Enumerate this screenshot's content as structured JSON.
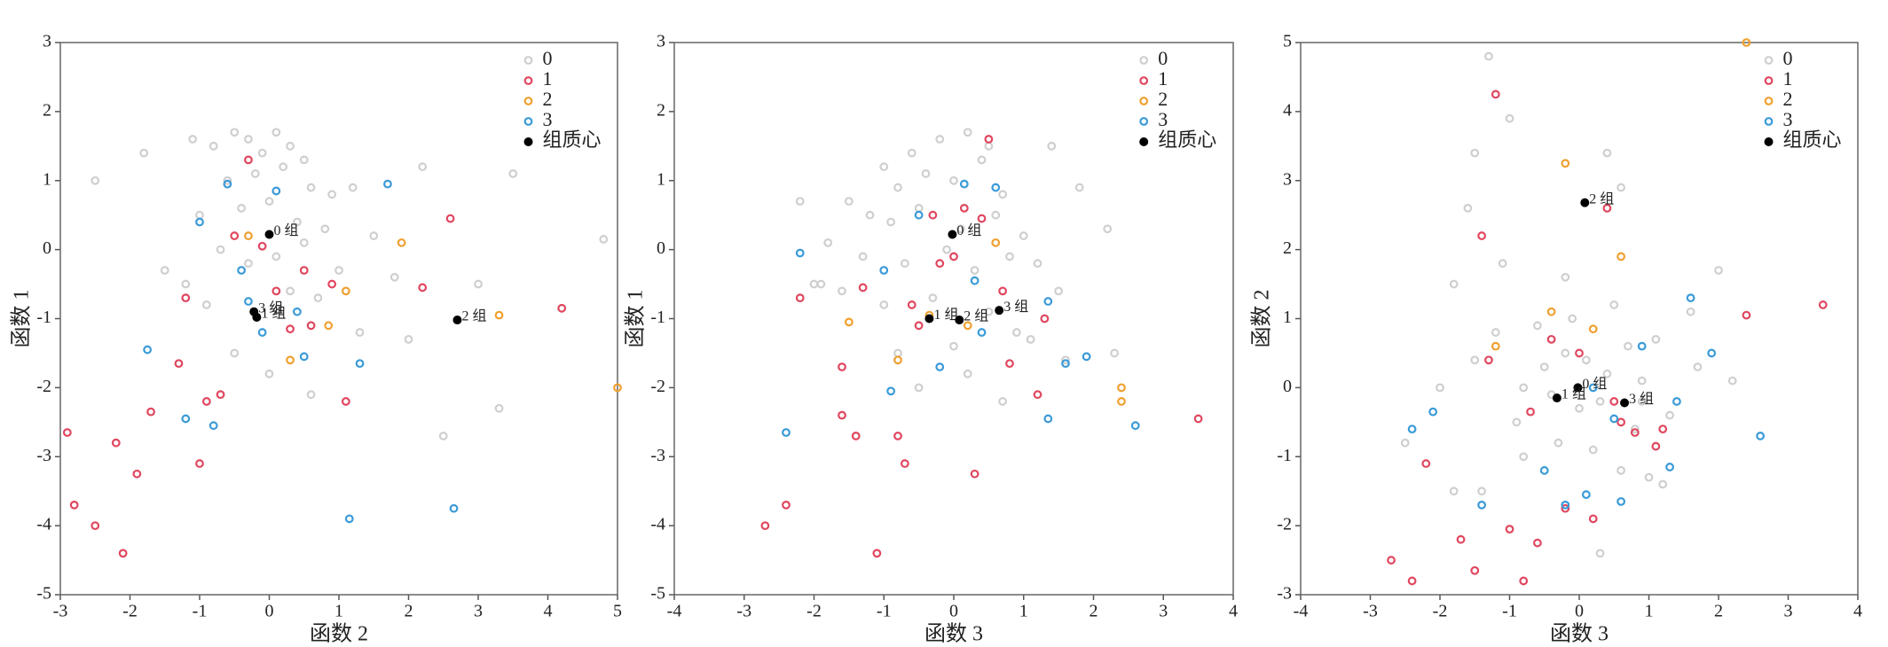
{
  "chart_data": [
    {
      "type": "scatter",
      "xlabel": "函数 2",
      "ylabel": "函数 1",
      "xlim": [
        -3,
        5
      ],
      "ylim": [
        -5,
        3
      ],
      "xticks": [
        -3,
        -2,
        -1,
        0,
        1,
        2,
        3,
        4,
        5
      ],
      "yticks": [
        -5,
        -4,
        -3,
        -2,
        -1,
        0,
        1,
        2,
        3
      ],
      "legend": "upper right",
      "series": [
        {
          "name": "0",
          "color": "#cfcfcf",
          "x": [
            -0.8,
            -0.5,
            -0.3,
            -0.1,
            0.1,
            0.3,
            0.5,
            -0.6,
            -0.2,
            0.2,
            0.6,
            0.9,
            -1.0,
            -0.4,
            0.0,
            0.4,
            0.8,
            1.2,
            -0.7,
            -0.3,
            0.1,
            0.5,
            1.0,
            1.5,
            -1.2,
            -0.9,
            0.3,
            0.7,
            1.3,
            2.0,
            -1.5,
            -2.5,
            -1.8,
            2.2,
            3.0,
            3.5,
            4.8,
            0.0,
            -0.5,
            0.6,
            1.8,
            2.5,
            3.3,
            -1.1
          ],
          "y": [
            1.5,
            1.7,
            1.6,
            1.4,
            1.7,
            1.5,
            1.3,
            1.0,
            1.1,
            1.2,
            0.9,
            0.8,
            0.5,
            0.6,
            0.7,
            0.4,
            0.3,
            0.9,
            0.0,
            -0.2,
            -0.1,
            0.1,
            -0.3,
            0.2,
            -0.5,
            -0.8,
            -0.6,
            -0.7,
            -1.2,
            -1.3,
            -0.3,
            1.0,
            1.4,
            1.2,
            -0.5,
            1.1,
            0.15,
            -1.8,
            -1.5,
            -2.1,
            -0.4,
            -2.7,
            -2.3,
            1.6
          ]
        },
        {
          "name": "1",
          "color": "#e0475f",
          "x": [
            -2.9,
            -2.8,
            -2.5,
            -2.1,
            -1.9,
            -1.7,
            -1.3,
            -1.0,
            -0.9,
            -0.7,
            -0.5,
            -0.3,
            -0.1,
            0.1,
            0.3,
            0.6,
            0.9,
            1.1,
            2.2,
            2.6,
            4.2,
            -2.2,
            -1.2,
            0.5
          ],
          "y": [
            -2.65,
            -3.7,
            -4.0,
            -4.4,
            -3.25,
            -2.35,
            -1.65,
            -3.1,
            -2.2,
            -2.1,
            0.2,
            1.3,
            0.05,
            -0.6,
            -1.15,
            -1.1,
            -0.5,
            -2.2,
            -0.55,
            0.45,
            -0.85,
            -2.8,
            -0.7,
            -0.3
          ]
        },
        {
          "name": "2",
          "color": "#f0a030",
          "x": [
            -0.3,
            0.3,
            0.85,
            1.1,
            1.9,
            3.3,
            5.0
          ],
          "y": [
            0.2,
            -1.6,
            -1.1,
            -0.6,
            0.1,
            -0.95,
            -2.0
          ]
        },
        {
          "name": "3",
          "color": "#3a9ad8",
          "x": [
            -1.75,
            -1.2,
            -1.0,
            -0.8,
            -0.6,
            -0.4,
            -0.1,
            0.1,
            0.5,
            1.15,
            1.3,
            1.7,
            2.65,
            -0.3,
            0.4
          ],
          "y": [
            -1.45,
            -2.45,
            0.4,
            -2.55,
            0.95,
            -0.3,
            -1.2,
            0.85,
            -1.55,
            -3.9,
            -1.65,
            0.95,
            -3.75,
            -0.75,
            -0.9
          ]
        },
        {
          "name": "组质心",
          "color": "#000000",
          "filled": true,
          "x": [
            0.0,
            -0.18,
            2.7,
            -0.22
          ],
          "y": [
            0.22,
            -0.98,
            -1.02,
            -0.9
          ],
          "point_labels": [
            "0 组",
            "1 组",
            "2 组",
            "3 组"
          ]
        }
      ]
    },
    {
      "type": "scatter",
      "xlabel": "函数 3",
      "ylabel": "函数 1",
      "xlim": [
        -4,
        4
      ],
      "ylim": [
        -5,
        3
      ],
      "xticks": [
        -4,
        -3,
        -2,
        -1,
        0,
        1,
        2,
        3,
        4
      ],
      "yticks": [
        -5,
        -4,
        -3,
        -2,
        -1,
        0,
        1,
        2,
        3
      ],
      "legend": "upper right",
      "series": [
        {
          "name": "0",
          "color": "#cfcfcf",
          "x": [
            -1.0,
            -0.6,
            -0.2,
            0.2,
            0.5,
            -0.8,
            -0.4,
            0.0,
            0.4,
            0.7,
            -1.5,
            -1.2,
            -0.9,
            -0.5,
            0.1,
            0.6,
            1.0,
            -1.8,
            -1.3,
            -0.7,
            -0.1,
            0.3,
            0.8,
            1.2,
            -2.0,
            -1.6,
            -1.0,
            -0.3,
            0.5,
            0.9,
            1.5,
            -2.2,
            -0.8,
            0.2,
            1.1,
            1.8,
            2.2,
            -0.5,
            0.7,
            1.4,
            -1.9,
            0.0,
            1.6,
            2.3
          ],
          "y": [
            1.2,
            1.4,
            1.6,
            1.7,
            1.5,
            0.9,
            1.1,
            1.0,
            1.3,
            0.8,
            0.7,
            0.5,
            0.4,
            0.6,
            0.3,
            0.5,
            0.2,
            0.1,
            -0.1,
            -0.2,
            0.0,
            -0.3,
            -0.1,
            -0.2,
            -0.5,
            -0.6,
            -0.8,
            -0.7,
            -0.9,
            -1.2,
            -0.6,
            0.7,
            -1.5,
            -1.8,
            -1.3,
            0.9,
            0.3,
            -2.0,
            -2.2,
            1.5,
            -0.5,
            -1.4,
            -1.6,
            -1.5
          ]
        },
        {
          "name": "1",
          "color": "#e0475f",
          "x": [
            -2.7,
            -2.4,
            -2.2,
            -1.6,
            -1.4,
            -1.1,
            -0.8,
            -0.7,
            -0.5,
            -0.3,
            0.0,
            0.3,
            0.5,
            0.8,
            1.2,
            1.3,
            0.15,
            3.5,
            -0.6,
            -1.3,
            0.4,
            -1.6,
            0.7,
            -0.2
          ],
          "y": [
            -4.0,
            -3.7,
            -0.7,
            -1.7,
            -2.7,
            -4.4,
            -2.7,
            -3.1,
            -1.1,
            0.5,
            -0.1,
            -3.25,
            1.6,
            -1.65,
            -2.1,
            -1.0,
            0.6,
            -2.45,
            -0.8,
            -0.55,
            0.45,
            -2.4,
            -0.6,
            -0.2
          ]
        },
        {
          "name": "2",
          "color": "#f0a030",
          "x": [
            -1.5,
            -0.8,
            -0.35,
            0.2,
            0.6,
            2.4,
            2.4
          ],
          "y": [
            -1.05,
            -1.6,
            -0.95,
            -1.1,
            0.1,
            -2.0,
            -2.2
          ]
        },
        {
          "name": "3",
          "color": "#3a9ad8",
          "x": [
            -2.4,
            -2.2,
            -1.0,
            -0.9,
            -0.5,
            -0.2,
            0.15,
            0.4,
            0.6,
            1.35,
            1.6,
            1.9,
            2.6,
            0.3,
            1.35
          ],
          "y": [
            -2.65,
            -0.05,
            -0.3,
            -2.05,
            0.5,
            -1.7,
            0.95,
            -1.2,
            0.9,
            -0.75,
            -1.65,
            -1.55,
            -2.55,
            -0.45,
            -2.45
          ]
        },
        {
          "name": "组质心",
          "color": "#000000",
          "filled": true,
          "x": [
            -0.02,
            -0.35,
            0.08,
            0.65
          ],
          "y": [
            0.22,
            -1.0,
            -1.02,
            -0.88
          ],
          "point_labels": [
            "0 组",
            "1 组",
            "2 组",
            "3 组"
          ]
        }
      ]
    },
    {
      "type": "scatter",
      "xlabel": "函数 3",
      "ylabel": "函数 2",
      "xlim": [
        -4,
        4
      ],
      "ylim": [
        -3,
        5
      ],
      "xticks": [
        -4,
        -3,
        -2,
        -1,
        0,
        1,
        2,
        3,
        4
      ],
      "yticks": [
        -3,
        -2,
        -1,
        0,
        1,
        2,
        3,
        4,
        5
      ],
      "legend": "upper right",
      "series": [
        {
          "name": "0",
          "color": "#cfcfcf",
          "x": [
            -0.5,
            -0.2,
            0.1,
            0.4,
            0.7,
            -0.8,
            -0.4,
            0.0,
            0.3,
            0.9,
            -1.2,
            -0.6,
            -0.1,
            0.5,
            1.1,
            -1.5,
            -0.9,
            -0.3,
            0.2,
            0.8,
            1.3,
            -1.8,
            -1.1,
            0.6,
            1.6,
            -2.0,
            -1.4,
            1.0,
            2.0,
            -2.5,
            -1.6,
            -1.0,
            0.4,
            1.7,
            2.2,
            -1.3,
            -0.8,
            0.3,
            1.2,
            -1.5,
            0.6,
            -0.2,
            -1.8,
            0.9
          ],
          "y": [
            0.3,
            0.5,
            0.4,
            0.2,
            0.6,
            0.0,
            -0.1,
            -0.3,
            -0.2,
            0.1,
            0.8,
            0.9,
            1.0,
            1.2,
            0.7,
            0.4,
            -0.5,
            -0.8,
            -0.9,
            -0.6,
            -0.4,
            1.5,
            1.8,
            -1.2,
            1.1,
            0.0,
            -1.5,
            -1.3,
            1.7,
            -0.8,
            2.6,
            3.9,
            3.4,
            0.3,
            0.1,
            4.8,
            -1.0,
            -2.4,
            -1.4,
            3.4,
            2.9,
            1.6,
            -1.5,
            -0.2
          ]
        },
        {
          "name": "1",
          "color": "#e0475f",
          "x": [
            -2.7,
            -2.4,
            -2.2,
            -1.7,
            -1.5,
            -1.4,
            -1.2,
            -1.0,
            -0.8,
            -0.6,
            -0.4,
            -0.2,
            0.0,
            0.2,
            0.4,
            0.6,
            0.8,
            1.1,
            1.2,
            2.4,
            3.5,
            -1.3,
            0.5,
            -0.7
          ],
          "y": [
            -2.5,
            -2.8,
            -1.1,
            -2.2,
            -2.65,
            2.2,
            4.25,
            -2.05,
            -2.8,
            -2.25,
            0.7,
            -1.75,
            0.5,
            -1.9,
            2.6,
            -0.5,
            -0.65,
            -0.85,
            -0.6,
            1.05,
            1.2,
            0.4,
            -0.2,
            -0.35
          ]
        },
        {
          "name": "2",
          "color": "#f0a030",
          "x": [
            -1.2,
            -0.4,
            -0.2,
            0.2,
            0.6,
            2.4
          ],
          "y": [
            0.6,
            1.1,
            3.25,
            0.85,
            1.9,
            5.0
          ]
        },
        {
          "name": "3",
          "color": "#3a9ad8",
          "x": [
            -2.4,
            -2.1,
            -1.4,
            -0.5,
            -0.2,
            0.1,
            0.2,
            0.6,
            0.9,
            1.3,
            1.4,
            1.6,
            1.9,
            2.6,
            0.5
          ],
          "y": [
            -0.6,
            -0.35,
            -1.7,
            -1.2,
            -1.7,
            -1.55,
            0.0,
            -1.65,
            0.6,
            -1.15,
            -0.2,
            1.3,
            0.5,
            -0.7,
            -0.45
          ]
        },
        {
          "name": "组质心",
          "color": "#000000",
          "filled": true,
          "x": [
            -0.02,
            -0.32,
            0.08,
            0.65
          ],
          "y": [
            0.0,
            -0.15,
            2.68,
            -0.22
          ],
          "point_labels": [
            "0 组",
            "1 组",
            "2 组",
            "3 组"
          ]
        }
      ]
    }
  ]
}
